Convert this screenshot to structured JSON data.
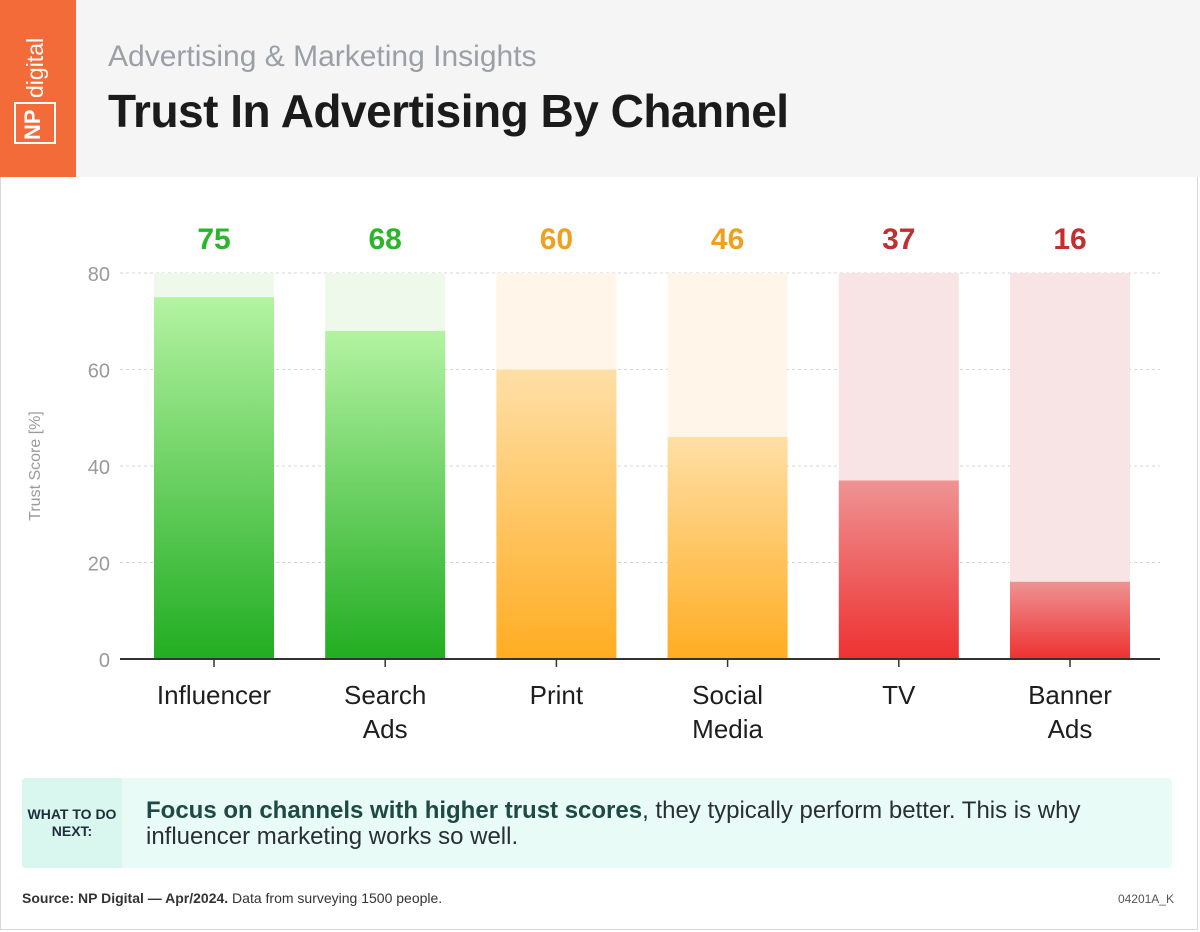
{
  "header": {
    "logo_np": "NP",
    "logo_digital": "digital",
    "subtitle": "Advertising & Marketing Insights",
    "title": "Trust In Advertising By Channel"
  },
  "chart_data": {
    "type": "bar",
    "title": "Trust In Advertising By Channel",
    "ylabel": "Trust Score [%]",
    "xlabel": "",
    "ylim": [
      0,
      80
    ],
    "yticks": [
      0,
      20,
      40,
      60,
      80
    ],
    "grid": true,
    "categories": [
      "Influencer",
      "Search Ads",
      "Print",
      "Social Media",
      "TV",
      "Banner Ads"
    ],
    "category_lines": [
      [
        "Influencer"
      ],
      [
        "Search",
        "Ads"
      ],
      [
        "Print"
      ],
      [
        "Social",
        "Media"
      ],
      [
        "TV"
      ],
      [
        "Banner",
        "Ads"
      ]
    ],
    "values": [
      75,
      68,
      60,
      46,
      37,
      16
    ],
    "colors": {
      "green": "#2ab52a",
      "orange": "#f0a020",
      "red": "#c0302e"
    },
    "bar_color_groups": [
      "green",
      "green",
      "orange",
      "orange",
      "red",
      "red"
    ]
  },
  "callout": {
    "tag": "WHAT TO DO NEXT:",
    "bold_text": "Focus on channels with higher trust scores",
    "text": ", they typically perform better. This is why influencer marketing works so well."
  },
  "footer": {
    "source_bold": "Source: NP Digital — Apr/2024.",
    "source_text": " Data from surveying 1500 people.",
    "code": "04201A_K"
  }
}
